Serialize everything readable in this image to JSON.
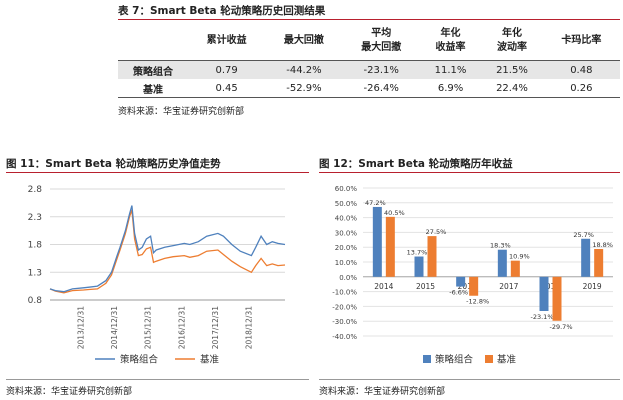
{
  "table": {
    "title": "表 7：Smart  Beta 轮动策略历史回测结果",
    "columns": [
      "累计收益",
      "最大回撤",
      "平均\n最大回撤",
      "年化\n收益率",
      "年化\n波动率",
      "卡玛比率"
    ],
    "rows": [
      {
        "name": "策略组合",
        "values": [
          "0.79",
          "-44.2%",
          "-23.1%",
          "11.1%",
          "21.5%",
          "0.48"
        ]
      },
      {
        "name": "基准",
        "values": [
          "0.45",
          "-52.9%",
          "-26.4%",
          "6.9%",
          "22.4%",
          "0.26"
        ]
      }
    ],
    "source": "资料来源：华宝证券研究创新部"
  },
  "fig11": {
    "title": "图 11：Smart Beta 轮动策略历史净值走势",
    "source": "资料来源：华宝证券研究创新部"
  },
  "fig12": {
    "title": "图 12：Smart Beta 轮动策略历年收益",
    "source": "资料来源：华宝证券研究创新部"
  },
  "colors": {
    "strategy": "#4f81bd",
    "benchmark": "#ed7d31",
    "rule": "#b8202e"
  },
  "chart_data": [
    {
      "type": "line",
      "title": "",
      "xlabel": "",
      "ylabel": "",
      "x_ticks": [
        "2013/12/31",
        "2014/12/31",
        "2015/12/31",
        "2016/12/31",
        "2017/12/31",
        "2018/12/31"
      ],
      "y_ticks": [
        0.8,
        1.3,
        1.8,
        2.3,
        2.8
      ],
      "ylim": [
        0.8,
        2.8
      ],
      "xlim": [
        "2013/01/01",
        "2019/12/31"
      ],
      "grid": "horizontal",
      "legend": "bottom",
      "series": [
        {
          "name": "策略组合",
          "x": [
            "2013/01/01",
            "2013/03/01",
            "2013/06/01",
            "2013/09/01",
            "2013/12/31",
            "2014/03/01",
            "2014/06/01",
            "2014/09/01",
            "2014/11/01",
            "2014/12/31",
            "2015/02/01",
            "2015/04/01",
            "2015/05/15",
            "2015/06/10",
            "2015/07/10",
            "2015/08/20",
            "2015/09/30",
            "2015/11/15",
            "2015/12/31",
            "2016/01/31",
            "2016/03/01",
            "2016/06/01",
            "2016/09/01",
            "2016/12/31",
            "2017/03/01",
            "2017/06/01",
            "2017/09/01",
            "2017/12/31",
            "2018/03/01",
            "2018/06/01",
            "2018/09/01",
            "2018/12/31",
            "2019/02/15",
            "2019/04/15",
            "2019/06/15",
            "2019/08/15",
            "2019/10/15",
            "2019/12/31"
          ],
          "values": [
            1.0,
            0.97,
            0.95,
            1.0,
            1.02,
            1.03,
            1.05,
            1.15,
            1.3,
            1.6,
            1.75,
            2.05,
            2.35,
            2.5,
            2.0,
            1.7,
            1.75,
            1.9,
            1.95,
            1.65,
            1.7,
            1.75,
            1.78,
            1.82,
            1.8,
            1.85,
            1.95,
            2.0,
            1.95,
            1.8,
            1.68,
            1.6,
            1.75,
            1.95,
            1.8,
            1.85,
            1.82,
            1.8
          ]
        },
        {
          "name": "基准",
          "x": [
            "2013/01/01",
            "2013/03/01",
            "2013/06/01",
            "2013/09/01",
            "2013/12/31",
            "2014/03/01",
            "2014/06/01",
            "2014/09/01",
            "2014/11/01",
            "2014/12/31",
            "2015/02/01",
            "2015/04/01",
            "2015/05/15",
            "2015/06/10",
            "2015/07/10",
            "2015/08/20",
            "2015/09/30",
            "2015/11/15",
            "2015/12/31",
            "2016/01/31",
            "2016/03/01",
            "2016/06/01",
            "2016/09/01",
            "2016/12/31",
            "2017/03/01",
            "2017/06/01",
            "2017/09/01",
            "2017/12/31",
            "2018/03/01",
            "2018/06/01",
            "2018/09/01",
            "2018/12/31",
            "2019/02/15",
            "2019/04/15",
            "2019/06/15",
            "2019/08/15",
            "2019/10/15",
            "2019/12/31"
          ],
          "values": [
            1.0,
            0.96,
            0.93,
            0.97,
            0.98,
            0.99,
            1.0,
            1.1,
            1.25,
            1.55,
            1.7,
            2.0,
            2.3,
            2.42,
            1.9,
            1.6,
            1.62,
            1.72,
            1.75,
            1.48,
            1.5,
            1.55,
            1.58,
            1.6,
            1.57,
            1.6,
            1.68,
            1.7,
            1.62,
            1.5,
            1.4,
            1.3,
            1.42,
            1.55,
            1.42,
            1.45,
            1.42,
            1.43
          ]
        }
      ]
    },
    {
      "type": "bar",
      "title": "",
      "xlabel": "",
      "ylabel": "",
      "categories": [
        "2014",
        "2015",
        "2016",
        "2017",
        "2018",
        "2019"
      ],
      "ylim": [
        -40,
        60
      ],
      "y_ticks": [
        "-40.0%",
        "-30.0%",
        "-20.0%",
        "-10.0%",
        "0.0%",
        "10.0%",
        "20.0%",
        "30.0%",
        "40.0%",
        "50.0%",
        "60.0%"
      ],
      "grid": "horizontal",
      "legend": "bottom",
      "series": [
        {
          "name": "策略组合",
          "values": [
            47.2,
            13.7,
            -6.6,
            18.3,
            -23.1,
            25.7
          ],
          "labels": [
            "47.2%",
            "13.7%",
            "-6.6%",
            "18.3%",
            "-23.1%",
            "25.7%"
          ]
        },
        {
          "name": "基准",
          "values": [
            40.5,
            27.5,
            -12.8,
            10.9,
            -29.7,
            18.8
          ],
          "labels": [
            "40.5%",
            "27.5%",
            "-12.8%",
            "10.9%",
            "-29.7%",
            "18.8%"
          ]
        }
      ]
    }
  ]
}
